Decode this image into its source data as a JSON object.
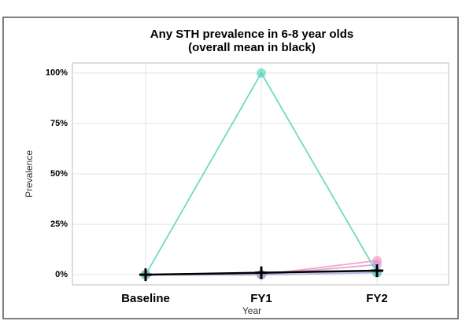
{
  "chart_data": {
    "type": "line",
    "title": [
      "Any STH prevalence in 6-8 year olds",
      "(overall mean in black)"
    ],
    "x_label": "Year",
    "y_label": "Prevalence",
    "categories": [
      "Baseline",
      "FY1",
      "FY2"
    ],
    "series": [
      {
        "color": "#f48fb1",
        "values": [
          0,
          0,
          7
        ]
      },
      {
        "color": "#ce93d8",
        "values": [
          0,
          0,
          5
        ]
      },
      {
        "color": "#9fa8da",
        "values": [
          0,
          0,
          1
        ]
      },
      {
        "color": "#4dd0b8",
        "values": [
          0,
          100,
          1
        ]
      },
      {
        "color": "#000000",
        "values": [
          0,
          1,
          2
        ],
        "marker": "plus"
      }
    ],
    "ylim": [
      -5,
      105
    ],
    "yticks": [
      {
        "value": 0,
        "label": "0%"
      },
      {
        "value": 25,
        "label": "25%"
      },
      {
        "value": 50,
        "label": "50%"
      },
      {
        "value": 75,
        "label": "75%"
      },
      {
        "value": 100,
        "label": "100%"
      }
    ],
    "grid": true
  }
}
